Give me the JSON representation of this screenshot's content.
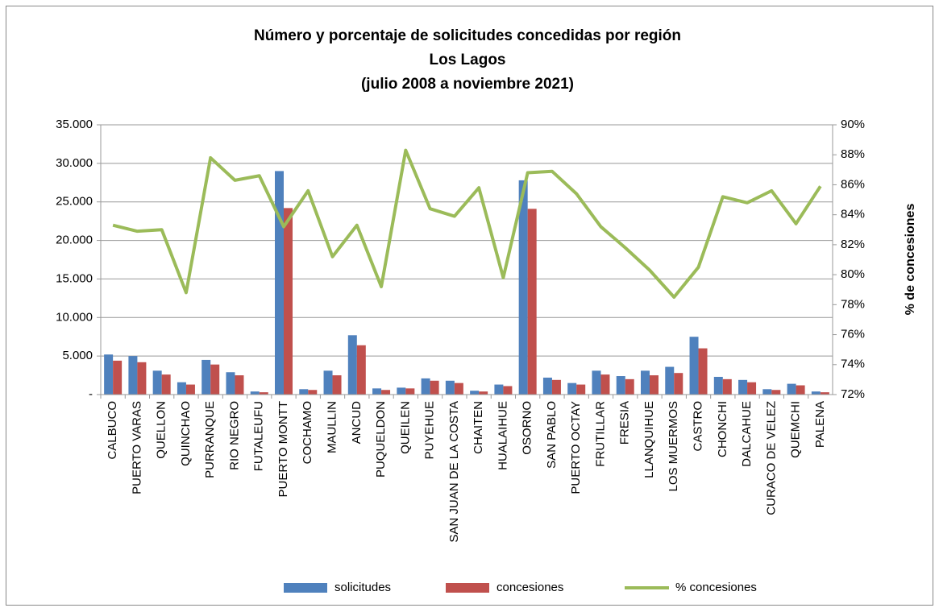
{
  "chart_data": {
    "type": "bar-line",
    "title": [
      "Número y porcentaje de solicitudes concedidas por región",
      "Los Lagos",
      "(julio 2008 a noviembre 2021)"
    ],
    "y2_label": "% de concesiones",
    "categories": [
      "CALBUCO",
      "PUERTO VARAS",
      "QUELLON",
      "QUINCHAO",
      "PURRANQUE",
      "RIO NEGRO",
      "FUTALEUFU",
      "PUERTO MONTT",
      "COCHAMO",
      "MAULLIN",
      "ANCUD",
      "PUQUELDON",
      "QUEILEN",
      "PUYEHUE",
      "SAN JUAN DE LA COSTA",
      "CHAITEN",
      "HUALAIHUE",
      "OSORNO",
      "SAN PABLO",
      "PUERTO OCTAY",
      "FRUTILLAR",
      "FRESIA",
      "LLANQUIHUE",
      "LOS MUERMOS",
      "CASTRO",
      "CHONCHI",
      "DALCAHUE",
      "CURACO DE VELEZ",
      "QUEMCHI",
      "PALENA"
    ],
    "series": [
      {
        "name": "solicitudes",
        "type": "bar",
        "color": "#4f81bd",
        "values": [
          5200,
          5000,
          3100,
          1600,
          4500,
          2900,
          400,
          29000,
          700,
          3100,
          7700,
          800,
          900,
          2100,
          1800,
          500,
          1300,
          27800,
          2200,
          1500,
          3100,
          2400,
          3100,
          3600,
          7500,
          2300,
          1900,
          700,
          1400,
          400
        ]
      },
      {
        "name": "concesiones",
        "type": "bar",
        "color": "#c0504d",
        "values": [
          4400,
          4200,
          2600,
          1300,
          3900,
          2500,
          300,
          24200,
          600,
          2500,
          6400,
          600,
          800,
          1800,
          1500,
          400,
          1100,
          24100,
          1900,
          1300,
          2600,
          2000,
          2500,
          2800,
          6000,
          2000,
          1600,
          600,
          1200,
          300
        ]
      },
      {
        "name": "% concesiones",
        "type": "line",
        "axis": "y2",
        "color": "#9bbb59",
        "values": [
          83.3,
          82.9,
          83.0,
          78.8,
          87.8,
          86.3,
          86.6,
          83.2,
          85.6,
          81.2,
          83.3,
          79.2,
          88.3,
          84.4,
          83.9,
          85.8,
          79.8,
          86.8,
          86.9,
          85.4,
          83.2,
          81.8,
          80.3,
          78.5,
          80.5,
          85.2,
          84.8,
          85.6,
          83.4,
          85.9
        ]
      }
    ],
    "ylim": [
      0,
      35000
    ],
    "yticks": [
      {
        "value": 0,
        "label": "-"
      },
      {
        "value": 5000,
        "label": "5.000"
      },
      {
        "value": 10000,
        "label": "10.000"
      },
      {
        "value": 15000,
        "label": "15.000"
      },
      {
        "value": 20000,
        "label": "20.000"
      },
      {
        "value": 25000,
        "label": "25.000"
      },
      {
        "value": 30000,
        "label": "30.000"
      },
      {
        "value": 35000,
        "label": "35.000"
      }
    ],
    "y2lim": [
      72,
      90
    ],
    "y2ticks": [
      {
        "value": 72,
        "label": "72%"
      },
      {
        "value": 74,
        "label": "74%"
      },
      {
        "value": 76,
        "label": "76%"
      },
      {
        "value": 78,
        "label": "78%"
      },
      {
        "value": 80,
        "label": "80%"
      },
      {
        "value": 82,
        "label": "82%"
      },
      {
        "value": 84,
        "label": "84%"
      },
      {
        "value": 86,
        "label": "86%"
      },
      {
        "value": 88,
        "label": "88%"
      },
      {
        "value": 90,
        "label": "90%"
      }
    ],
    "grid": true,
    "legend": "bottom"
  }
}
